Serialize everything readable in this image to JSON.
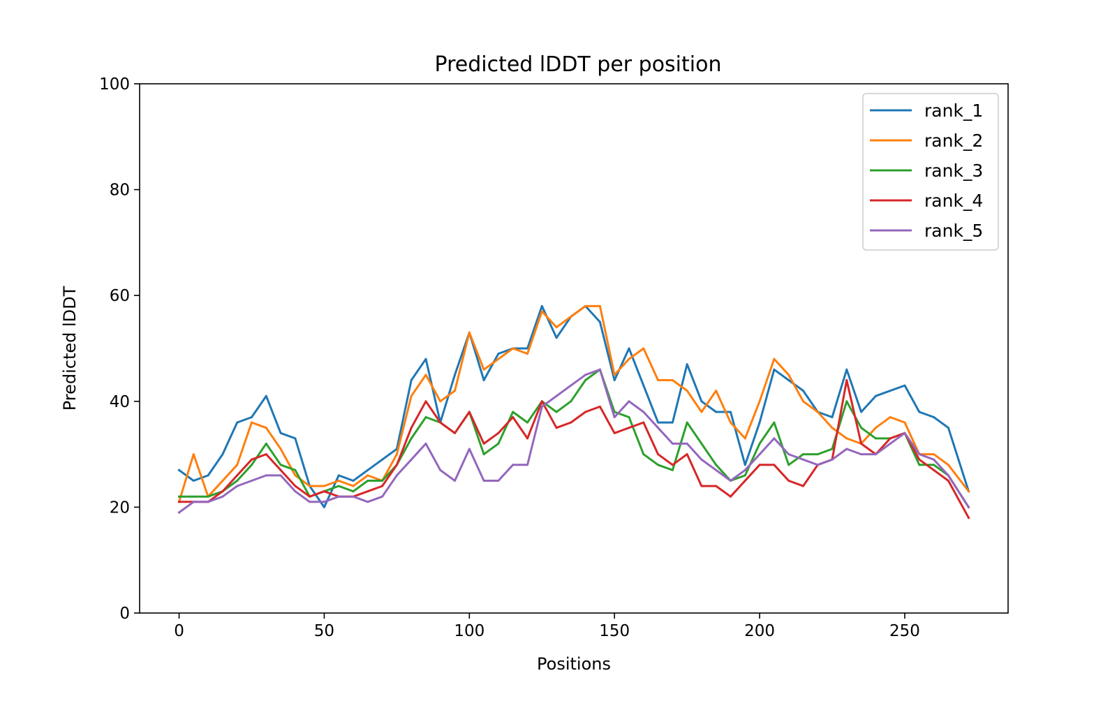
{
  "chart_data": {
    "type": "line",
    "title": "Predicted lDDT per position",
    "xlabel": "Positions",
    "ylabel": "Predicted lDDT",
    "xlim": [
      -13.6,
      285.6
    ],
    "ylim": [
      0,
      100
    ],
    "xticks": [
      0,
      50,
      100,
      150,
      200,
      250
    ],
    "xtick_labels": [
      "0",
      "50",
      "100",
      "150",
      "200",
      "250"
    ],
    "yticks": [
      0,
      20,
      40,
      60,
      80,
      100
    ],
    "ytick_labels": [
      "0",
      "20",
      "40",
      "60",
      "80",
      "100"
    ],
    "grid": false,
    "legend_position": "top-right",
    "x": [
      0,
      5,
      10,
      15,
      20,
      25,
      30,
      35,
      40,
      45,
      50,
      55,
      60,
      65,
      70,
      75,
      80,
      85,
      90,
      95,
      100,
      105,
      110,
      115,
      120,
      125,
      130,
      135,
      140,
      145,
      150,
      155,
      160,
      165,
      170,
      175,
      180,
      185,
      190,
      195,
      200,
      205,
      210,
      215,
      220,
      225,
      230,
      235,
      240,
      245,
      250,
      255,
      260,
      265,
      272
    ],
    "series": [
      {
        "name": "rank_1",
        "color": "#1f77b4",
        "values": [
          27,
          25,
          26,
          30,
          36,
          37,
          41,
          34,
          33,
          24,
          20,
          26,
          25,
          27,
          29,
          31,
          44,
          48,
          36,
          45,
          53,
          44,
          49,
          50,
          50,
          58,
          52,
          56,
          58,
          55,
          44,
          50,
          43,
          36,
          36,
          47,
          40,
          38,
          38,
          28,
          36,
          46,
          44,
          42,
          38,
          37,
          46,
          38,
          41,
          42,
          43,
          38,
          37,
          35,
          23
        ]
      },
      {
        "name": "rank_2",
        "color": "#ff7f0e",
        "values": [
          21,
          30,
          22,
          25,
          28,
          36,
          35,
          31,
          26,
          24,
          24,
          25,
          24,
          26,
          25,
          30,
          41,
          45,
          40,
          42,
          53,
          46,
          48,
          50,
          49,
          57,
          54,
          56,
          58,
          58,
          45,
          48,
          50,
          44,
          44,
          42,
          38,
          42,
          36,
          33,
          40,
          48,
          45,
          40,
          38,
          35,
          33,
          32,
          35,
          37,
          36,
          30,
          30,
          28,
          23
        ]
      },
      {
        "name": "rank_3",
        "color": "#2ca02c",
        "values": [
          22,
          22,
          22,
          23,
          25,
          28,
          32,
          28,
          27,
          22,
          23,
          24,
          23,
          25,
          25,
          28,
          33,
          37,
          36,
          34,
          38,
          30,
          32,
          38,
          36,
          40,
          38,
          40,
          44,
          46,
          38,
          37,
          30,
          28,
          27,
          36,
          32,
          28,
          25,
          26,
          32,
          36,
          28,
          30,
          30,
          31,
          40,
          35,
          33,
          33,
          34,
          28,
          28,
          26,
          20
        ]
      },
      {
        "name": "rank_4",
        "color": "#d62728",
        "values": [
          21,
          21,
          21,
          23,
          26,
          29,
          30,
          27,
          24,
          22,
          23,
          22,
          22,
          23,
          24,
          28,
          35,
          40,
          36,
          34,
          38,
          32,
          34,
          37,
          33,
          40,
          35,
          36,
          38,
          39,
          34,
          35,
          36,
          30,
          28,
          30,
          24,
          24,
          22,
          25,
          28,
          28,
          25,
          24,
          28,
          29,
          44,
          32,
          30,
          33,
          34,
          29,
          27,
          25,
          18
        ]
      },
      {
        "name": "rank_5",
        "color": "#9467bd",
        "values": [
          19,
          21,
          21,
          22,
          24,
          25,
          26,
          26,
          23,
          21,
          21,
          22,
          22,
          21,
          22,
          26,
          29,
          32,
          27,
          25,
          31,
          25,
          25,
          28,
          28,
          39,
          41,
          43,
          45,
          46,
          37,
          40,
          38,
          35,
          32,
          32,
          29,
          27,
          25,
          27,
          30,
          33,
          30,
          29,
          28,
          29,
          31,
          30,
          30,
          32,
          34,
          30,
          29,
          26,
          20
        ]
      }
    ]
  }
}
